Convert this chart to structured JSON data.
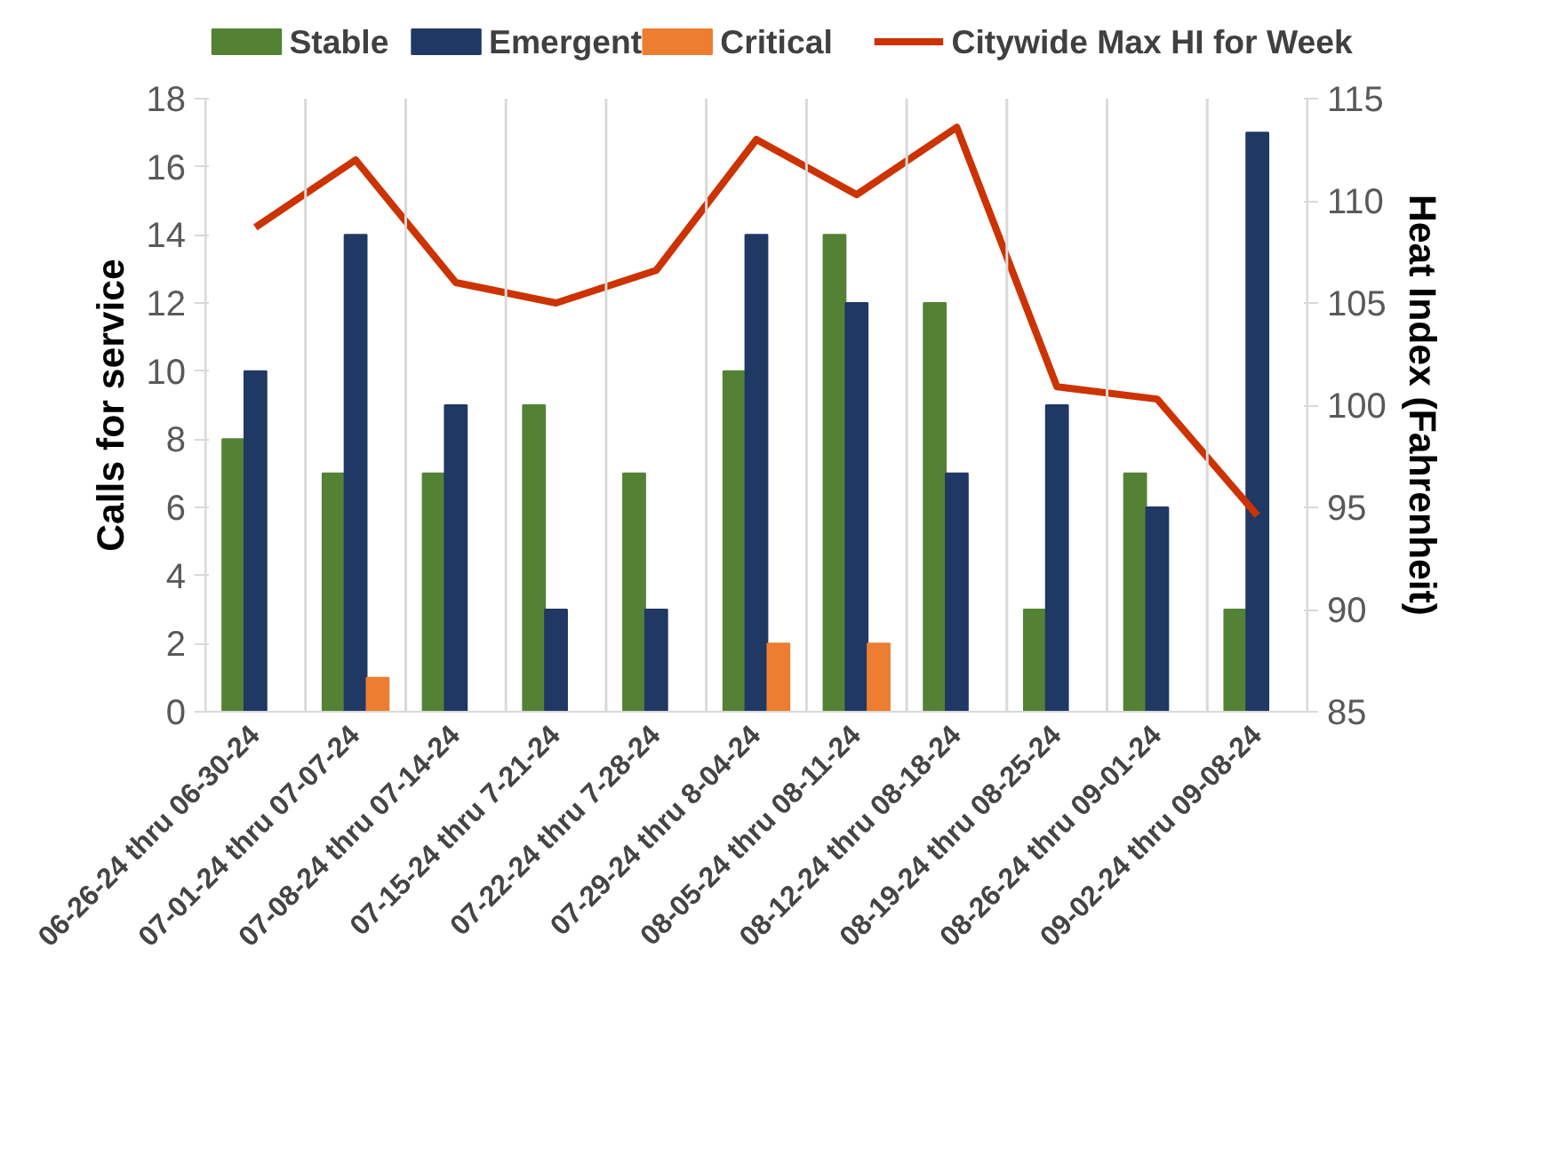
{
  "chart_data": {
    "type": "bar",
    "ylabel": "Calls for service",
    "y2label": "Heat Index (Fahrenheit)",
    "categories": [
      "06-26-24 thru 06-30-24",
      "07-01-24 thru 07-07-24",
      "07-08-24 thru 07-14-24",
      "07-15-24 thru 7-21-24",
      "07-22-24 thru 7-28-24",
      "07-29-24 thru 8-04-24",
      "08-05-24 thru 08-11-24",
      "08-12-24 thru 08-18-24",
      "08-19-24 thru 08-25-24",
      "08-26-24 thru 09-01-24",
      "09-02-24 thru 09-08-24"
    ],
    "series": [
      {
        "name": "Stable",
        "color": "#548235",
        "values": [
          8,
          7,
          7,
          9,
          7,
          10,
          14,
          12,
          3,
          7,
          3
        ]
      },
      {
        "name": "Emergent",
        "color": "#203864",
        "values": [
          10,
          14,
          9,
          3,
          3,
          14,
          12,
          7,
          9,
          6,
          17
        ]
      },
      {
        "name": "Critical",
        "color": "#ed7d31",
        "values": [
          0,
          1,
          0,
          0,
          0,
          2,
          2,
          0,
          0,
          0,
          0
        ]
      },
      {
        "name": "Citywide Max HI for Week",
        "color": "#cc3300",
        "type": "line",
        "axis": "y2",
        "values": [
          108.7,
          112.0,
          106.0,
          105.0,
          106.6,
          113.0,
          110.3,
          113.6,
          100.9,
          100.3,
          94.6
        ]
      }
    ],
    "ylim": [
      0,
      18
    ],
    "yticks": [
      0,
      2,
      4,
      6,
      8,
      10,
      12,
      14,
      16,
      18
    ],
    "y2lim": [
      85,
      115
    ],
    "y2ticks": [
      85,
      90,
      95,
      100,
      105,
      110,
      115
    ],
    "grid": "x",
    "legend": "top",
    "line_style": "solid",
    "marker": "none"
  }
}
